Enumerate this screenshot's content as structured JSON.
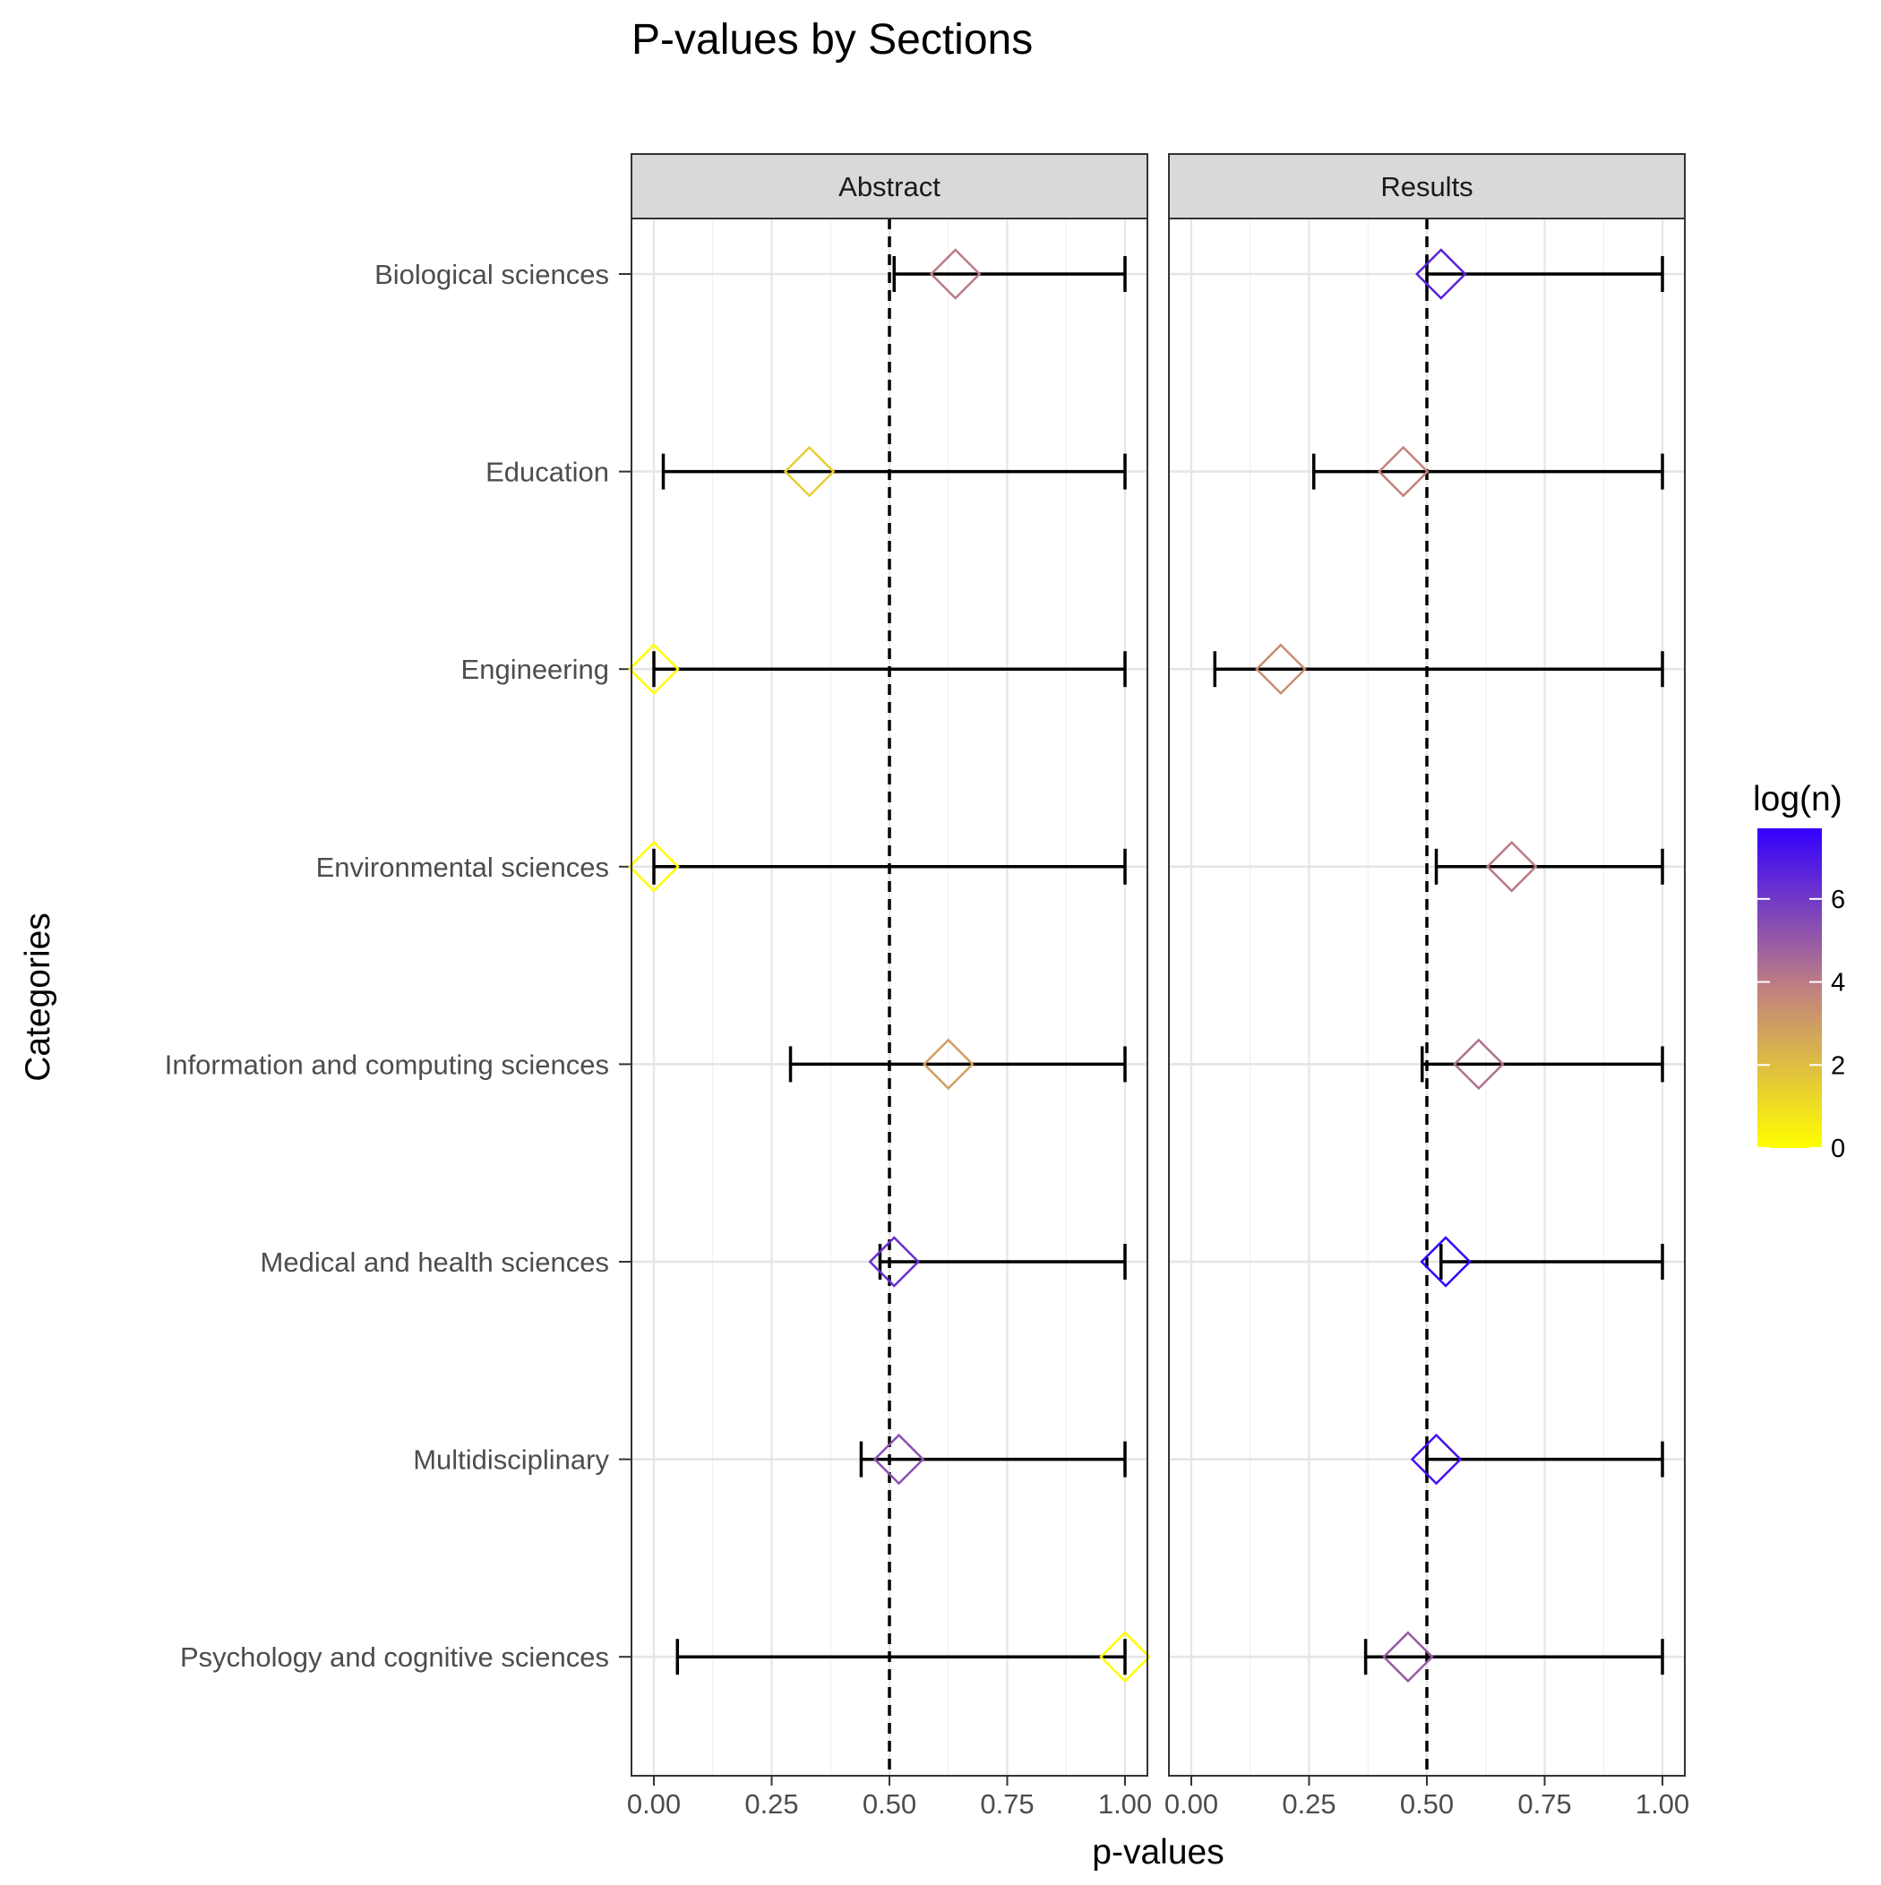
{
  "chart_data": {
    "type": "scatter",
    "title": "P-values by Sections",
    "xlabel": "p-values",
    "ylabel": "Categories",
    "xlim": [
      0,
      1
    ],
    "x_ticks": [
      "0.00",
      "0.25",
      "0.50",
      "0.75",
      "1.00"
    ],
    "x_tick_values": [
      0,
      0.25,
      0.5,
      0.75,
      1
    ],
    "reference_line": 0.5,
    "grid": true,
    "marker": "open-diamond",
    "categories": [
      "Biological sciences",
      "Education",
      "Engineering",
      "Environmental sciences",
      "Information and computing sciences",
      "Medical and health sciences",
      "Multidisciplinary",
      "Psychology and cognitive sciences"
    ],
    "panels": [
      {
        "name": "Abstract",
        "points": [
          {
            "category": "Biological sciences",
            "p": 0.64,
            "lower": 0.51,
            "upper": 1.0,
            "log_n": 4.0
          },
          {
            "category": "Education",
            "p": 0.33,
            "lower": 0.02,
            "upper": 1.0,
            "log_n": 1.5
          },
          {
            "category": "Engineering",
            "p": 0.0,
            "lower": 0.0,
            "upper": 1.0,
            "log_n": 0.0
          },
          {
            "category": "Environmental sciences",
            "p": 0.0,
            "lower": 0.0,
            "upper": 1.0,
            "log_n": 0.0
          },
          {
            "category": "Information and computing sciences",
            "p": 0.625,
            "lower": 0.29,
            "upper": 1.0,
            "log_n": 2.9
          },
          {
            "category": "Medical and health sciences",
            "p": 0.51,
            "lower": 0.48,
            "upper": 1.0,
            "log_n": 6.3
          },
          {
            "category": "Multidisciplinary",
            "p": 0.52,
            "lower": 0.44,
            "upper": 1.0,
            "log_n": 5.3
          },
          {
            "category": "Psychology and cognitive sciences",
            "p": 1.0,
            "lower": 0.05,
            "upper": 1.0,
            "log_n": 0.0
          }
        ]
      },
      {
        "name": "Results",
        "points": [
          {
            "category": "Biological sciences",
            "p": 0.53,
            "lower": 0.5,
            "upper": 1.0,
            "log_n": 6.7
          },
          {
            "category": "Education",
            "p": 0.45,
            "lower": 0.26,
            "upper": 1.0,
            "log_n": 3.8
          },
          {
            "category": "Engineering",
            "p": 0.19,
            "lower": 0.05,
            "upper": 1.0,
            "log_n": 3.4
          },
          {
            "category": "Environmental sciences",
            "p": 0.68,
            "lower": 0.52,
            "upper": 1.0,
            "log_n": 4.0
          },
          {
            "category": "Information and computing sciences",
            "p": 0.61,
            "lower": 0.49,
            "upper": 1.0,
            "log_n": 4.3
          },
          {
            "category": "Medical and health sciences",
            "p": 0.54,
            "lower": 0.53,
            "upper": 1.0,
            "log_n": 7.7
          },
          {
            "category": "Multidisciplinary",
            "p": 0.52,
            "lower": 0.5,
            "upper": 1.0,
            "log_n": 7.2
          },
          {
            "category": "Psychology and cognitive sciences",
            "p": 0.46,
            "lower": 0.37,
            "upper": 1.0,
            "log_n": 5.0
          }
        ]
      }
    ],
    "legend": {
      "title": "log(n)",
      "position": "right",
      "type": "colorbar",
      "range": [
        0,
        7.7
      ],
      "ticks": [
        0,
        2,
        4,
        6
      ],
      "tick_labels": [
        "0",
        "2",
        "4",
        "6"
      ],
      "color_low": "#FFFF00",
      "color_mid": "#C08080",
      "color_high": "#3300FF"
    }
  }
}
